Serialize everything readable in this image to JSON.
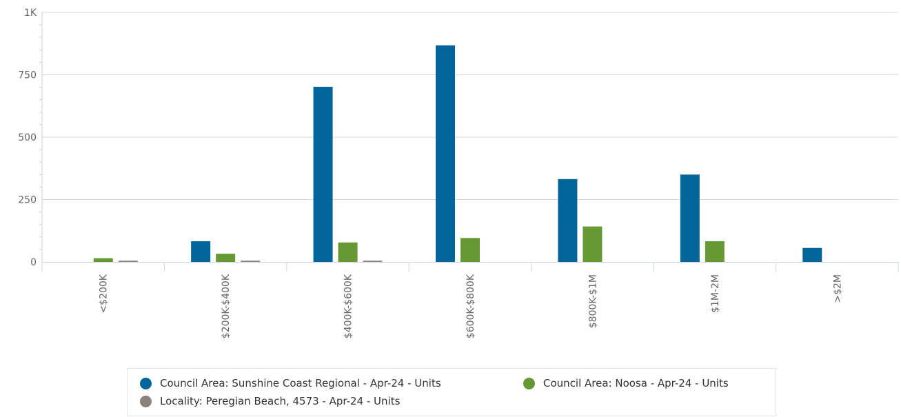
{
  "chart_data": {
    "type": "bar",
    "categories": [
      "<$200K",
      "$200K-$400K",
      "$400K-$600K",
      "$600K-$800K",
      "$800K-$1M",
      "$1M-2M",
      ">$2M"
    ],
    "series": [
      {
        "name": "Council Area: Sunshine Coast Regional - Apr-24 - Units",
        "color": "#006699",
        "values": [
          0,
          83,
          702,
          868,
          332,
          350,
          56
        ]
      },
      {
        "name": "Council Area: Noosa - Apr-24 - Units",
        "color": "#669933",
        "values": [
          15,
          33,
          78,
          96,
          142,
          83,
          0
        ]
      },
      {
        "name": "Locality: Peregian Beach, 4573 - Apr-24 - Units",
        "color": "#8c8279",
        "values": [
          5,
          5,
          5,
          0,
          0,
          0,
          0
        ]
      }
    ],
    "y_ticks": [
      {
        "value": 0,
        "label": "0"
      },
      {
        "value": 250,
        "label": "250"
      },
      {
        "value": 500,
        "label": "500"
      },
      {
        "value": 750,
        "label": "750"
      },
      {
        "value": 1000,
        "label": "1K"
      }
    ],
    "ylim": [
      0,
      1000
    ],
    "grid": true,
    "legend_position": "bottom",
    "title": "",
    "xlabel": "",
    "ylabel": ""
  }
}
